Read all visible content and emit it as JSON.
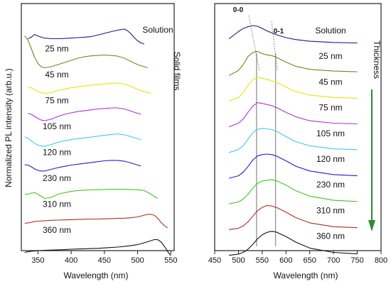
{
  "chart_data": [
    {
      "type": "line",
      "panel": "left",
      "xlabel": "Wavelength (nm)",
      "ylabel": "Normalized PL intensity (arb.u.)",
      "xlim": [
        325,
        555
      ],
      "xticks": [
        350,
        400,
        450,
        500,
        550
      ],
      "y_ticks_shown": false,
      "group_label": "Solid films",
      "series": [
        {
          "name": "Solution",
          "color": "#1a1a8c",
          "x": [
            335,
            340,
            345,
            350,
            355,
            360,
            370,
            380,
            390,
            400,
            410,
            420,
            430,
            440,
            450,
            460,
            470,
            475,
            480,
            485,
            490,
            495,
            500,
            505,
            510
          ],
          "y": [
            0.55,
            0.62,
            0.75,
            0.68,
            0.62,
            0.58,
            0.55,
            0.55,
            0.56,
            0.58,
            0.6,
            0.62,
            0.65,
            0.72,
            0.8,
            0.88,
            0.95,
            0.98,
            1.0,
            0.92,
            0.78,
            0.6,
            0.45,
            0.35,
            0.3
          ]
        },
        {
          "name": "25 nm",
          "color": "#808020",
          "x": [
            330,
            335,
            340,
            345,
            350,
            355,
            360,
            370,
            380,
            390,
            400,
            410,
            420,
            430,
            440,
            450,
            460,
            470,
            480,
            490,
            500,
            510,
            515
          ],
          "y": [
            1.9,
            1.7,
            1.3,
            0.9,
            0.6,
            0.45,
            0.4,
            0.45,
            0.55,
            0.65,
            0.75,
            0.85,
            0.92,
            0.96,
            0.98,
            1.0,
            0.98,
            0.95,
            0.85,
            0.7,
            0.55,
            0.45,
            0.4
          ]
        },
        {
          "name": "45 nm",
          "color": "#e6e600",
          "x": [
            335,
            340,
            345,
            350,
            355,
            360,
            370,
            380,
            390,
            400,
            410,
            420,
            430,
            440,
            450,
            460,
            470,
            480,
            490,
            500,
            510,
            520
          ],
          "y": [
            0.7,
            0.68,
            0.6,
            0.5,
            0.45,
            0.42,
            0.45,
            0.55,
            0.62,
            0.68,
            0.72,
            0.76,
            0.8,
            0.84,
            0.86,
            0.88,
            0.9,
            0.85,
            0.75,
            0.6,
            0.5,
            0.42
          ]
        },
        {
          "name": "75 nm",
          "color": "#b030d8",
          "x": [
            335,
            340,
            345,
            350,
            355,
            360,
            370,
            380,
            390,
            400,
            410,
            420,
            430,
            440,
            450,
            460,
            470,
            480,
            490,
            500,
            505
          ],
          "y": [
            0.7,
            0.65,
            0.55,
            0.45,
            0.38,
            0.35,
            0.42,
            0.55,
            0.65,
            0.72,
            0.78,
            0.82,
            0.86,
            0.9,
            0.92,
            0.95,
            0.95,
            0.9,
            0.8,
            0.7,
            0.65
          ]
        },
        {
          "name": "105 nm",
          "color": "#40c8f0",
          "x": [
            330,
            335,
            340,
            345,
            350,
            355,
            360,
            370,
            380,
            390,
            400,
            410,
            420,
            430,
            440,
            450,
            460,
            470,
            480,
            490,
            500,
            505
          ],
          "y": [
            0.8,
            0.75,
            0.62,
            0.5,
            0.42,
            0.38,
            0.36,
            0.45,
            0.55,
            0.62,
            0.68,
            0.72,
            0.76,
            0.8,
            0.84,
            0.88,
            0.92,
            0.95,
            0.9,
            0.82,
            0.72,
            0.68
          ]
        },
        {
          "name": "120 nm",
          "color": "#2020c8",
          "x": [
            330,
            335,
            340,
            345,
            350,
            355,
            360,
            370,
            380,
            390,
            400,
            410,
            420,
            430,
            440,
            450,
            460,
            470,
            480,
            490,
            500,
            505
          ],
          "y": [
            0.72,
            0.7,
            0.62,
            0.52,
            0.45,
            0.42,
            0.42,
            0.5,
            0.58,
            0.64,
            0.7,
            0.74,
            0.78,
            0.82,
            0.86,
            0.9,
            0.92,
            0.92,
            0.88,
            0.8,
            0.7,
            0.66
          ]
        },
        {
          "name": "230 nm",
          "color": "#40c820",
          "x": [
            330,
            335,
            340,
            345,
            350,
            355,
            360,
            370,
            380,
            390,
            400,
            410,
            420,
            430,
            440,
            450,
            460,
            470,
            480,
            490,
            500,
            510,
            520,
            530
          ],
          "y": [
            0.55,
            0.55,
            0.6,
            0.62,
            0.55,
            0.45,
            0.35,
            0.4,
            0.55,
            0.62,
            0.68,
            0.72,
            0.74,
            0.75,
            0.76,
            0.77,
            0.78,
            0.78,
            0.78,
            0.77,
            0.76,
            0.72,
            0.55,
            0.35
          ]
        },
        {
          "name": "310 nm",
          "color": "#a83020",
          "x": [
            330,
            335,
            340,
            345,
            350,
            360,
            370,
            380,
            390,
            400,
            410,
            420,
            430,
            440,
            450,
            460,
            470,
            480,
            490,
            500,
            510,
            515,
            520,
            525,
            530,
            535,
            540,
            545
          ],
          "y": [
            0.4,
            0.42,
            0.45,
            0.48,
            0.5,
            0.52,
            0.54,
            0.55,
            0.56,
            0.57,
            0.58,
            0.59,
            0.6,
            0.6,
            0.61,
            0.62,
            0.63,
            0.64,
            0.66,
            0.7,
            0.78,
            0.82,
            0.82,
            0.78,
            0.65,
            0.45,
            0.3,
            0.18
          ]
        },
        {
          "name": "360 nm",
          "color": "#111111",
          "x": [
            330,
            335,
            340,
            345,
            350,
            360,
            370,
            380,
            390,
            400,
            410,
            420,
            430,
            440,
            450,
            460,
            470,
            480,
            490,
            500,
            510,
            520,
            525,
            530,
            535,
            540,
            545,
            550
          ],
          "y": [
            0.25,
            0.28,
            0.3,
            0.32,
            0.33,
            0.35,
            0.36,
            0.37,
            0.38,
            0.4,
            0.41,
            0.42,
            0.43,
            0.44,
            0.46,
            0.48,
            0.5,
            0.53,
            0.57,
            0.62,
            0.7,
            0.8,
            0.85,
            0.85,
            0.75,
            0.55,
            0.3,
            0.1
          ]
        }
      ]
    },
    {
      "type": "line",
      "panel": "right",
      "xlabel": "Wavelength (nm)",
      "xlim": [
        450,
        800
      ],
      "xticks": [
        450,
        500,
        550,
        600,
        650,
        700,
        750,
        800
      ],
      "y_ticks_shown": false,
      "annotations": [
        "0-0",
        "0-1",
        "Thickness"
      ],
      "guide_lines_nm": [
        538,
        578
      ],
      "series": [
        {
          "name": "Solution",
          "color": "#1a1a8c",
          "x": [
            480,
            500,
            510,
            520,
            530,
            540,
            550,
            560,
            570,
            580,
            600,
            620,
            650,
            700,
            750
          ],
          "y": [
            0.45,
            0.75,
            0.88,
            0.95,
            1.0,
            0.97,
            0.88,
            0.78,
            0.7,
            0.62,
            0.5,
            0.42,
            0.35,
            0.3,
            0.28
          ]
        },
        {
          "name": "25 nm",
          "color": "#808020",
          "x": [
            480,
            500,
            510,
            520,
            530,
            540,
            550,
            560,
            570,
            580,
            600,
            620,
            650,
            700,
            750
          ],
          "y": [
            0.0,
            0.2,
            0.45,
            0.78,
            0.95,
            1.0,
            0.9,
            0.85,
            0.82,
            0.75,
            0.55,
            0.38,
            0.25,
            0.18,
            0.15
          ]
        },
        {
          "name": "45 nm",
          "color": "#e6e600",
          "x": [
            480,
            500,
            510,
            520,
            530,
            540,
            550,
            560,
            570,
            580,
            600,
            620,
            650,
            700,
            750
          ],
          "y": [
            0.0,
            0.15,
            0.35,
            0.65,
            0.88,
            0.98,
            0.95,
            0.9,
            0.85,
            0.78,
            0.58,
            0.4,
            0.25,
            0.15,
            0.12
          ]
        },
        {
          "name": "75 nm",
          "color": "#b030d8",
          "x": [
            480,
            500,
            510,
            520,
            530,
            540,
            550,
            560,
            570,
            580,
            600,
            620,
            650,
            700,
            750
          ],
          "y": [
            0.0,
            0.15,
            0.32,
            0.6,
            0.85,
            1.0,
            0.97,
            0.92,
            0.88,
            0.8,
            0.6,
            0.42,
            0.25,
            0.15,
            0.12
          ]
        },
        {
          "name": "105 nm",
          "color": "#40c8f0",
          "x": [
            480,
            500,
            510,
            520,
            530,
            540,
            550,
            560,
            570,
            580,
            600,
            620,
            650,
            700,
            750
          ],
          "y": [
            0.0,
            0.12,
            0.28,
            0.55,
            0.82,
            0.96,
            1.0,
            0.98,
            0.95,
            0.88,
            0.66,
            0.45,
            0.28,
            0.15,
            0.12
          ]
        },
        {
          "name": "120 nm",
          "color": "#2020c8",
          "x": [
            480,
            500,
            510,
            520,
            530,
            540,
            550,
            560,
            570,
            580,
            600,
            620,
            650,
            700,
            750
          ],
          "y": [
            0.0,
            0.1,
            0.25,
            0.48,
            0.75,
            0.92,
            0.98,
            1.0,
            0.98,
            0.92,
            0.72,
            0.5,
            0.3,
            0.15,
            0.1
          ]
        },
        {
          "name": "230 nm",
          "color": "#40c820",
          "x": [
            480,
            500,
            510,
            520,
            530,
            540,
            550,
            560,
            570,
            580,
            600,
            620,
            650,
            700,
            750
          ],
          "y": [
            0.0,
            0.08,
            0.2,
            0.4,
            0.65,
            0.85,
            0.95,
            0.98,
            1.0,
            0.96,
            0.78,
            0.55,
            0.32,
            0.15,
            0.1
          ]
        },
        {
          "name": "310 nm",
          "color": "#a83020",
          "x": [
            480,
            500,
            510,
            520,
            530,
            540,
            550,
            560,
            570,
            580,
            600,
            620,
            650,
            700,
            750
          ],
          "y": [
            0.0,
            0.06,
            0.15,
            0.32,
            0.55,
            0.78,
            0.92,
            1.0,
            0.98,
            0.92,
            0.72,
            0.5,
            0.28,
            0.12,
            0.08
          ]
        },
        {
          "name": "360 nm",
          "color": "#111111",
          "x": [
            480,
            500,
            510,
            520,
            530,
            540,
            550,
            560,
            570,
            580,
            600,
            620,
            650,
            700,
            750
          ],
          "y": [
            0.0,
            0.05,
            0.12,
            0.25,
            0.45,
            0.68,
            0.85,
            0.95,
            1.0,
            0.96,
            0.78,
            0.55,
            0.3,
            0.12,
            0.06
          ]
        }
      ]
    }
  ]
}
